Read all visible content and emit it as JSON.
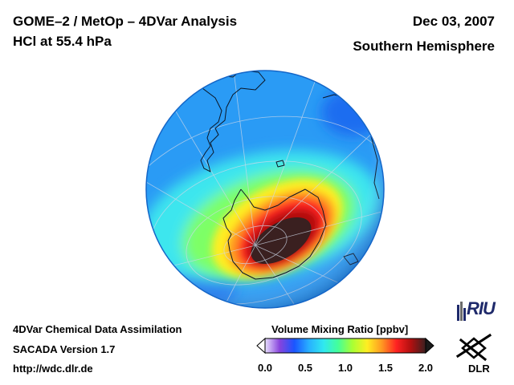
{
  "header": {
    "title_line1": "GOME–2 / MetOp – 4DVar Analysis",
    "title_line2": "HCl at 55.4 hPa",
    "date": "Dec 03, 2007",
    "hemisphere": "Southern Hemisphere"
  },
  "footer": {
    "line1": "4DVar Chemical Data Assimilation",
    "line2": "SACADA Version 1.7",
    "line3": "http://wdc.dlr.de"
  },
  "colorbar": {
    "title": "Volume Mixing Ratio [ppbv]",
    "ticks": [
      "0.0",
      "0.5",
      "1.0",
      "1.5",
      "2.0"
    ],
    "colors": [
      "#e8e0ff",
      "#8844dd",
      "#1a55ff",
      "#28b0ff",
      "#30e8f0",
      "#44ff99",
      "#aaff33",
      "#ffee22",
      "#ff9922",
      "#ff2222",
      "#b01010",
      "#3a2020"
    ]
  },
  "logos": {
    "riu": "RIU",
    "dlr": "DLR"
  },
  "map": {
    "background_color": "#2a9bf5",
    "coastline_color": "#0b1626",
    "grid_color": "#cfd8e8"
  }
}
